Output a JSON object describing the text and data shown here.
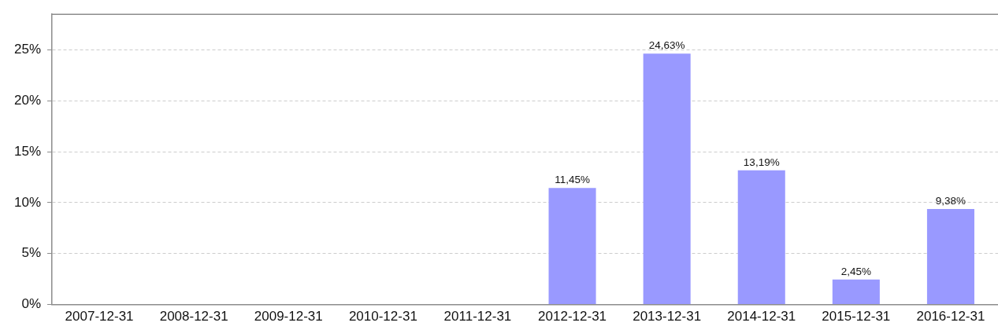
{
  "chart_data": {
    "type": "bar",
    "categories": [
      "2007-12-31",
      "2008-12-31",
      "2009-12-31",
      "2010-12-31",
      "2011-12-31",
      "2012-12-31",
      "2013-12-31",
      "2014-12-31",
      "2015-12-31",
      "2016-12-31"
    ],
    "values": [
      null,
      null,
      null,
      null,
      null,
      11.45,
      24.63,
      13.19,
      2.45,
      9.38
    ],
    "value_labels": [
      null,
      null,
      null,
      null,
      null,
      "11,45%",
      "24,63%",
      "13,19%",
      "2,45%",
      "9,38%"
    ],
    "color": "#9999ff",
    "ylim": [
      0,
      28.5
    ],
    "yticks": [
      {
        "value": 0,
        "label": "0%"
      },
      {
        "value": 5,
        "label": "5%"
      },
      {
        "value": 10,
        "label": "10%"
      },
      {
        "value": 15,
        "label": "15%"
      },
      {
        "value": 20,
        "label": "20%"
      },
      {
        "value": 25,
        "label": "25%"
      }
    ],
    "grid": "y"
  }
}
